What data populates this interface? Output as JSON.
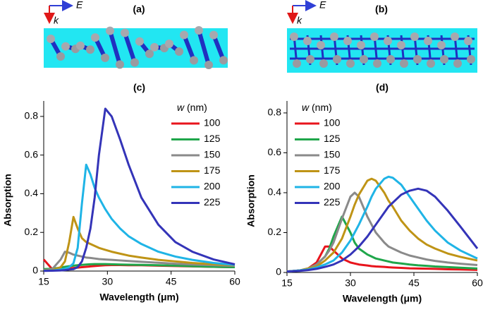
{
  "schematics": [
    {
      "label": "(a)",
      "field": "E",
      "wave": "k"
    },
    {
      "label": "(b)",
      "field": "E",
      "wave": "k"
    }
  ],
  "chart_data": [
    {
      "type": "line",
      "title": "(c)",
      "x_label": "Wavelength (μm)",
      "y_label": "Absorption",
      "legend_title_symbol": "w",
      "legend_title_unit": "(nm)",
      "legend": "upper right",
      "xlim": [
        15,
        60
      ],
      "xticks": [
        15,
        30,
        45,
        60
      ],
      "ylim": [
        0,
        0.88
      ],
      "yticks": [
        0,
        0.2,
        0.4,
        0.6,
        0.8
      ],
      "x": [
        15,
        17,
        19,
        20,
        21,
        22,
        23,
        24,
        25,
        26,
        27,
        28,
        29.5,
        31,
        33,
        35,
        38,
        42,
        46,
        50,
        55,
        60
      ],
      "series": [
        {
          "name": "100",
          "color": "#e8141c",
          "values": [
            0.06,
            0.01,
            0.01,
            0.012,
            0.014,
            0.016,
            0.018,
            0.02,
            0.022,
            0.024,
            0.026,
            0.028,
            0.03,
            0.031,
            0.031,
            0.03,
            0.03,
            0.028,
            0.026,
            0.024,
            0.022,
            0.02
          ]
        },
        {
          "name": "125",
          "color": "#1fa64a",
          "values": [
            0.01,
            0.012,
            0.018,
            0.022,
            0.025,
            0.028,
            0.03,
            0.032,
            0.034,
            0.035,
            0.036,
            0.036,
            0.036,
            0.035,
            0.034,
            0.033,
            0.032,
            0.03,
            0.028,
            0.025,
            0.022,
            0.02
          ]
        },
        {
          "name": "150",
          "color": "#8a8a8a",
          "values": [
            0.005,
            0.01,
            0.06,
            0.1,
            0.095,
            0.085,
            0.08,
            0.075,
            0.07,
            0.068,
            0.065,
            0.062,
            0.06,
            0.058,
            0.055,
            0.052,
            0.048,
            0.043,
            0.038,
            0.034,
            0.03,
            0.027
          ]
        },
        {
          "name": "175",
          "color": "#bf9416",
          "values": [
            0.003,
            0.005,
            0.02,
            0.05,
            0.15,
            0.28,
            0.22,
            0.17,
            0.15,
            0.14,
            0.13,
            0.12,
            0.11,
            0.1,
            0.09,
            0.08,
            0.07,
            0.058,
            0.05,
            0.042,
            0.035,
            0.03
          ]
        },
        {
          "name": "200",
          "color": "#1fb4e6",
          "values": [
            0.002,
            0.003,
            0.008,
            0.012,
            0.02,
            0.04,
            0.12,
            0.35,
            0.55,
            0.5,
            0.43,
            0.38,
            0.32,
            0.27,
            0.22,
            0.18,
            0.14,
            0.1,
            0.075,
            0.058,
            0.042,
            0.032
          ]
        },
        {
          "name": "225",
          "color": "#3434b8",
          "values": [
            0.001,
            0.002,
            0.003,
            0.005,
            0.008,
            0.01,
            0.02,
            0.05,
            0.12,
            0.22,
            0.38,
            0.6,
            0.84,
            0.8,
            0.68,
            0.55,
            0.38,
            0.24,
            0.15,
            0.1,
            0.06,
            0.035
          ]
        }
      ]
    },
    {
      "type": "line",
      "title": "(d)",
      "x_label": "Wavelength (μm)",
      "y_label": "Absorption",
      "legend_title_symbol": "w",
      "legend_title_unit": "(nm)",
      "legend": "upper left",
      "xlim": [
        15,
        60
      ],
      "xticks": [
        15,
        30,
        45,
        60
      ],
      "ylim": [
        0,
        0.86
      ],
      "yticks": [
        0,
        0.2,
        0.4,
        0.6,
        0.8
      ],
      "x": [
        15,
        18,
        20,
        22,
        24,
        25,
        26,
        28,
        30,
        31,
        32,
        34,
        35,
        36,
        38,
        39,
        40,
        42,
        44,
        46,
        48,
        50,
        53,
        56,
        60
      ],
      "series": [
        {
          "name": "100",
          "color": "#e8141c",
          "values": [
            0.005,
            0.01,
            0.02,
            0.05,
            0.13,
            0.13,
            0.11,
            0.07,
            0.05,
            0.045,
            0.04,
            0.035,
            0.032,
            0.03,
            0.028,
            0.026,
            0.025,
            0.023,
            0.021,
            0.02,
            0.019,
            0.018,
            0.016,
            0.015,
            0.013
          ]
        },
        {
          "name": "125",
          "color": "#1fa64a",
          "values": [
            0.005,
            0.01,
            0.02,
            0.04,
            0.08,
            0.12,
            0.18,
            0.28,
            0.2,
            0.15,
            0.12,
            0.09,
            0.08,
            0.07,
            0.06,
            0.055,
            0.05,
            0.045,
            0.04,
            0.036,
            0.033,
            0.03,
            0.027,
            0.024,
            0.02
          ]
        },
        {
          "name": "150",
          "color": "#8a8a8a",
          "values": [
            0.005,
            0.01,
            0.02,
            0.04,
            0.08,
            0.11,
            0.15,
            0.27,
            0.38,
            0.4,
            0.38,
            0.28,
            0.24,
            0.2,
            0.15,
            0.13,
            0.12,
            0.1,
            0.085,
            0.075,
            0.065,
            0.058,
            0.05,
            0.044,
            0.037
          ]
        },
        {
          "name": "175",
          "color": "#bf9416",
          "values": [
            0.005,
            0.01,
            0.02,
            0.03,
            0.06,
            0.08,
            0.1,
            0.17,
            0.28,
            0.34,
            0.39,
            0.46,
            0.47,
            0.46,
            0.4,
            0.36,
            0.33,
            0.26,
            0.21,
            0.17,
            0.14,
            0.12,
            0.095,
            0.078,
            0.06
          ]
        },
        {
          "name": "200",
          "color": "#1fb4e6",
          "values": [
            0.005,
            0.01,
            0.015,
            0.025,
            0.04,
            0.05,
            0.06,
            0.1,
            0.16,
            0.2,
            0.24,
            0.33,
            0.38,
            0.42,
            0.47,
            0.48,
            0.475,
            0.44,
            0.38,
            0.32,
            0.26,
            0.21,
            0.15,
            0.11,
            0.07
          ]
        },
        {
          "name": "225",
          "color": "#3434b8",
          "values": [
            0.005,
            0.008,
            0.012,
            0.018,
            0.028,
            0.034,
            0.04,
            0.06,
            0.09,
            0.11,
            0.13,
            0.18,
            0.21,
            0.24,
            0.3,
            0.33,
            0.35,
            0.39,
            0.41,
            0.42,
            0.41,
            0.38,
            0.31,
            0.23,
            0.12
          ]
        }
      ]
    }
  ]
}
